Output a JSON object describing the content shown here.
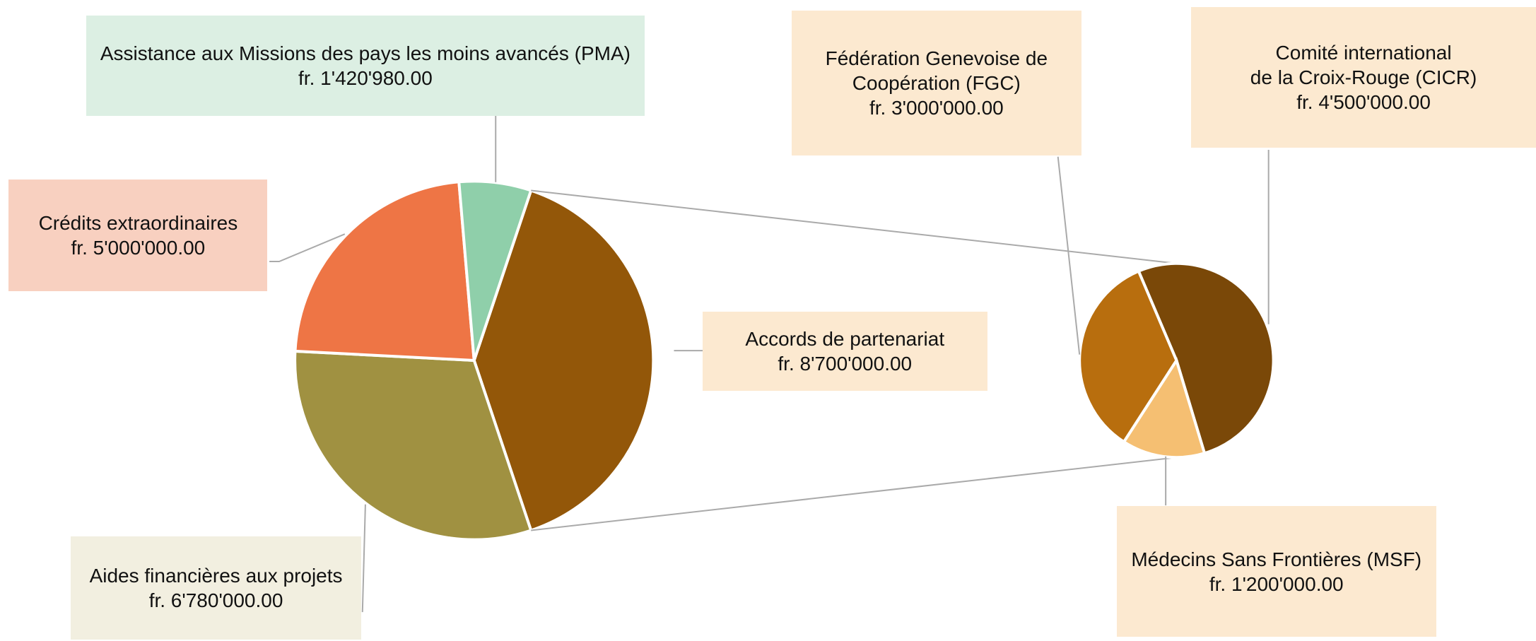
{
  "chart_data": {
    "type": "pie-of-pie",
    "categories": [
      "Accords de partenariat",
      "Aides financières aux projets",
      "Crédits extraordinaires",
      "Assistance aux Missions des pays les moins avancés (PMA)"
    ],
    "values": [
      8700000,
      6780000,
      5000000,
      1420980
    ],
    "value_labels": [
      "fr. 8'700'000.00",
      "fr. 6'780'000.00",
      "fr. 5'000'000.00",
      "fr. 1'420'980.00"
    ],
    "colors": [
      "#935709",
      "#a09141",
      "#ee7545",
      "#8fcfaa"
    ],
    "sub": {
      "categories": [
        "Comité international\nde la Croix-Rouge  (CICR)",
        "Médecins Sans Frontières (MSF)",
        "Fédération Genevoise de\nCoopération (FGC)"
      ],
      "values": [
        4500000,
        1200000,
        3000000
      ],
      "value_labels": [
        "fr. 4'500'000.00",
        "fr. 1'200'000.00",
        "fr. 3'000'000.00"
      ],
      "colors": [
        "#7a4808",
        "#f5bf72",
        "#b86e0e"
      ]
    }
  }
}
